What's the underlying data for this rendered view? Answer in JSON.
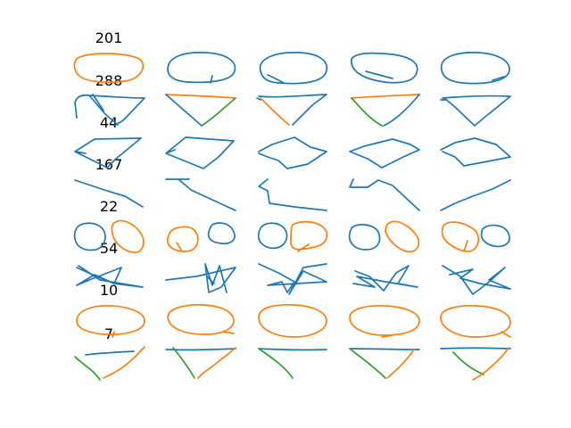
{
  "colors": {
    "stroke_1": "#1f77b4",
    "stroke_2": "#ff7f0e",
    "stroke_3": "#2ca02c"
  },
  "rows": [
    {
      "label": "201",
      "shape": "ellipse",
      "columns": 5
    },
    {
      "label": "288",
      "shape": "triangle-wedge",
      "columns": 5
    },
    {
      "label": "44",
      "shape": "diamond",
      "columns": 5
    },
    {
      "label": "167",
      "shape": "slanted-line",
      "columns": 5
    },
    {
      "label": "22",
      "shape": "two-circles",
      "columns": 5
    },
    {
      "label": "54",
      "shape": "star",
      "columns": 5
    },
    {
      "label": "10",
      "shape": "ellipse",
      "columns": 5
    },
    {
      "label": "7",
      "shape": "triangle-wedge",
      "columns": 5
    }
  ]
}
